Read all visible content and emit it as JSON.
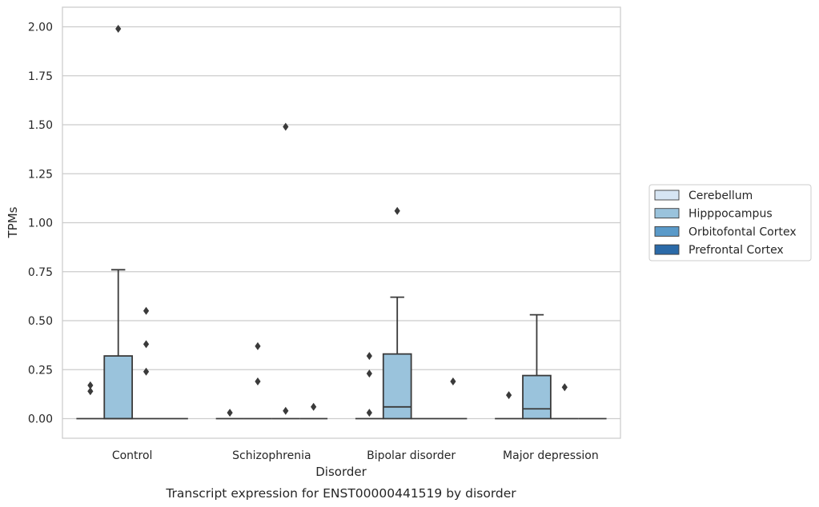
{
  "chart_data": {
    "type": "box",
    "title": "",
    "caption": "Transcript expression for ENST00000441519 by disorder",
    "xlabel": "Disorder",
    "ylabel": "TPMs",
    "ylim": [
      -0.1,
      2.1
    ],
    "yticks": [
      "0.00",
      "0.25",
      "0.50",
      "0.75",
      "1.00",
      "1.25",
      "1.50",
      "1.75",
      "2.00"
    ],
    "ytick_values": [
      0,
      0.25,
      0.5,
      0.75,
      1.0,
      1.25,
      1.5,
      1.75,
      2.0
    ],
    "categories": [
      "Control",
      "Schizophrenia",
      "Bipolar disorder",
      "Major depression"
    ],
    "grid": "horizontal",
    "legend_position": "right",
    "colors": {
      "Cerebellum": "#d6e5f3",
      "Hipppocampus": "#9ac3dc",
      "Orbitofontal Cortex": "#5a9ac9",
      "Prefrontal Cortex": "#2b6aa8"
    },
    "series": [
      {
        "name": "Cerebellum",
        "boxes": [
          {
            "q1": 0,
            "median": 0,
            "q3": 0,
            "whislo": 0,
            "whishi": 0,
            "fliers": [
              0.17,
              0.14
            ]
          },
          {
            "q1": 0,
            "median": 0,
            "q3": 0,
            "whislo": 0,
            "whishi": 0,
            "fliers": [
              0.03
            ]
          },
          {
            "q1": 0,
            "median": 0,
            "q3": 0,
            "whislo": 0,
            "whishi": 0,
            "fliers": [
              0.32,
              0.23,
              0.03
            ]
          },
          {
            "q1": 0,
            "median": 0,
            "q3": 0,
            "whislo": 0,
            "whishi": 0,
            "fliers": [
              0.12
            ]
          }
        ]
      },
      {
        "name": "Hipppocampus",
        "boxes": [
          {
            "q1": 0,
            "median": 0,
            "q3": 0.32,
            "whislo": 0,
            "whishi": 0.76,
            "fliers": [
              1.99
            ]
          },
          {
            "q1": 0,
            "median": 0,
            "q3": 0,
            "whislo": 0,
            "whishi": 0,
            "fliers": [
              0.37,
              0.19
            ]
          },
          {
            "q1": 0,
            "median": 0.06,
            "q3": 0.33,
            "whislo": 0,
            "whishi": 0.62,
            "fliers": [
              1.06
            ]
          },
          {
            "q1": 0,
            "median": 0.05,
            "q3": 0.22,
            "whislo": 0,
            "whishi": 0.53,
            "fliers": []
          }
        ]
      },
      {
        "name": "Orbitofontal Cortex",
        "boxes": [
          {
            "q1": 0,
            "median": 0,
            "q3": 0,
            "whislo": 0,
            "whishi": 0,
            "fliers": [
              0.55,
              0.38,
              0.24
            ]
          },
          {
            "q1": 0,
            "median": 0,
            "q3": 0,
            "whislo": 0,
            "whishi": 0,
            "fliers": [
              1.49,
              0.04
            ]
          },
          {
            "q1": 0,
            "median": 0,
            "q3": 0,
            "whislo": 0,
            "whishi": 0,
            "fliers": []
          },
          {
            "q1": 0,
            "median": 0,
            "q3": 0,
            "whislo": 0,
            "whishi": 0,
            "fliers": [
              0.16
            ]
          }
        ]
      },
      {
        "name": "Prefrontal Cortex",
        "boxes": [
          {
            "q1": 0,
            "median": 0,
            "q3": 0,
            "whislo": 0,
            "whishi": 0,
            "fliers": []
          },
          {
            "q1": 0,
            "median": 0,
            "q3": 0,
            "whislo": 0,
            "whishi": 0,
            "fliers": [
              0.06
            ]
          },
          {
            "q1": 0,
            "median": 0,
            "q3": 0,
            "whislo": 0,
            "whishi": 0,
            "fliers": [
              0.19
            ]
          },
          {
            "q1": 0,
            "median": 0,
            "q3": 0,
            "whislo": 0,
            "whishi": 0,
            "fliers": []
          }
        ]
      }
    ]
  }
}
